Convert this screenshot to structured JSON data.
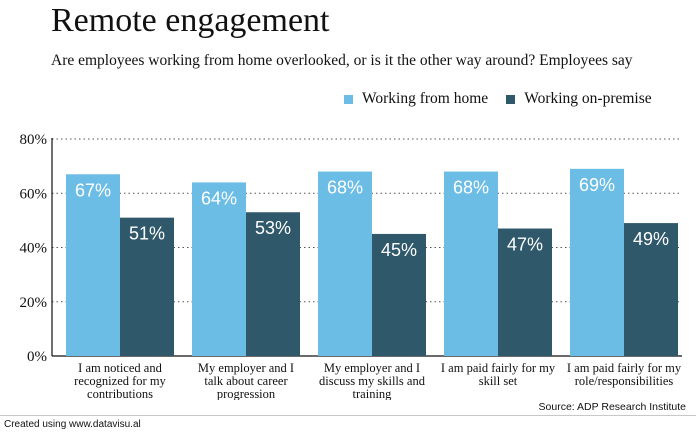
{
  "chart_data": {
    "type": "bar",
    "title": "Remote engagement",
    "subtitle": "Are employees working from home overlooked, or is it the other way around? Employees say",
    "categories": [
      [
        "I am noticed and",
        "recognized for my",
        "contributions"
      ],
      [
        "My employer and I",
        "talk about career",
        "progression"
      ],
      [
        "My employer and I",
        "discuss my skills and",
        "training"
      ],
      [
        "I am paid fairly for my",
        "skill set"
      ],
      [
        "I am paid fairly for my",
        "role/responsibilities"
      ]
    ],
    "series": [
      {
        "name": "Working from home",
        "values": [
          67,
          64,
          68,
          68,
          69
        ],
        "labels": [
          "67%",
          "64%",
          "68%",
          "68%",
          "69%"
        ],
        "color": "#6cbde6"
      },
      {
        "name": "Working on-premise",
        "values": [
          51,
          53,
          45,
          47,
          49
        ],
        "labels": [
          "51%",
          "53%",
          "45%",
          "47%",
          "49%"
        ],
        "color": "#2f596b"
      }
    ],
    "ylim": [
      0,
      80
    ],
    "yticks": [
      0,
      20,
      40,
      60,
      80
    ],
    "ytick_labels": [
      "0%",
      "20%",
      "40%",
      "60%",
      "80%"
    ],
    "grid": true,
    "legend_position": "top-right",
    "source": "Source: ADP Research Institute"
  },
  "footer": {
    "credit": "Created using www.datavisu.al"
  }
}
